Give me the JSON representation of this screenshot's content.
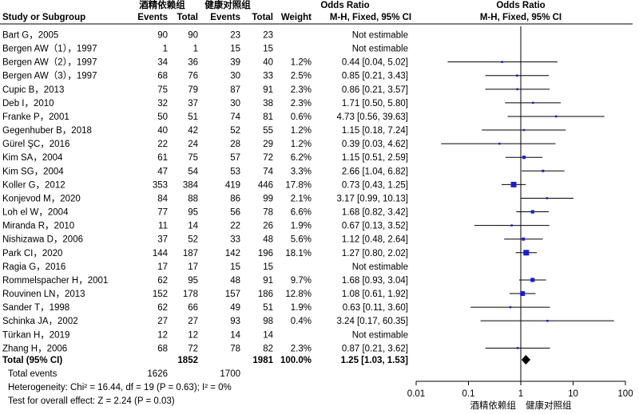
{
  "header": {
    "exp_group": "酒精依赖组",
    "ctl_group": "健康对照组",
    "or_title": "Odds Ratio",
    "plot_title": "Odds Ratio",
    "study_label": "Study or Subgroup",
    "events": "Events",
    "total": "Total",
    "weight": "Weight",
    "method": "M-H, Fixed, 95% CI",
    "plot_method": "M-H, Fixed, 95% CI"
  },
  "studies": [
    {
      "name": "Bart G，2005",
      "e1": "90",
      "t1": "90",
      "e2": "23",
      "t2": "23",
      "weight": "",
      "or_text": "Not estimable"
    },
    {
      "name": "Bergen AW（1），1997",
      "e1": "1",
      "t1": "1",
      "e2": "15",
      "t2": "15",
      "weight": "",
      "or_text": "Not estimable"
    },
    {
      "name": "Bergen AW（2），1997",
      "e1": "34",
      "t1": "36",
      "e2": "39",
      "t2": "40",
      "weight": "1.2%",
      "or_text": "0.44 [0.04, 5.02]"
    },
    {
      "name": "Bergen AW（3），1997",
      "e1": "68",
      "t1": "76",
      "e2": "30",
      "t2": "33",
      "weight": "2.5%",
      "or_text": "0.85 [0.21, 3.43]"
    },
    {
      "name": "Cupic B，2013",
      "e1": "75",
      "t1": "79",
      "e2": "87",
      "t2": "91",
      "weight": "2.3%",
      "or_text": "0.86 [0.21, 3.57]"
    },
    {
      "name": "Deb I，2010",
      "e1": "32",
      "t1": "37",
      "e2": "30",
      "t2": "38",
      "weight": "2.3%",
      "or_text": "1.71 [0.50, 5.80]"
    },
    {
      "name": "Franke P，2001",
      "e1": "50",
      "t1": "51",
      "e2": "74",
      "t2": "81",
      "weight": "0.6%",
      "or_text": "4.73 [0.56, 39.63]"
    },
    {
      "name": "Gegenhuber B，2018",
      "e1": "40",
      "t1": "42",
      "e2": "52",
      "t2": "55",
      "weight": "1.2%",
      "or_text": "1.15 [0.18, 7.24]"
    },
    {
      "name": "Gürel ŞC，2016",
      "e1": "22",
      "t1": "24",
      "e2": "28",
      "t2": "29",
      "weight": "1.2%",
      "or_text": "0.39 [0.03, 4.62]"
    },
    {
      "name": "Kim SA，2004",
      "e1": "61",
      "t1": "75",
      "e2": "57",
      "t2": "72",
      "weight": "6.2%",
      "or_text": "1.15 [0.51, 2.59]"
    },
    {
      "name": "Kim SG，2004",
      "e1": "47",
      "t1": "54",
      "e2": "53",
      "t2": "74",
      "weight": "3.3%",
      "or_text": "2.66 [1.04, 6.82]"
    },
    {
      "name": "Koller G，2012",
      "e1": "353",
      "t1": "384",
      "e2": "419",
      "t2": "446",
      "weight": "17.8%",
      "or_text": "0.73 [0.43, 1.25]"
    },
    {
      "name": "Konjevod M，2020",
      "e1": "84",
      "t1": "88",
      "e2": "86",
      "t2": "99",
      "weight": "2.1%",
      "or_text": "3.17 [0.99, 10.13]"
    },
    {
      "name": "Loh el W，2004",
      "e1": "77",
      "t1": "95",
      "e2": "56",
      "t2": "78",
      "weight": "6.6%",
      "or_text": "1.68 [0.82, 3.42]"
    },
    {
      "name": "Miranda R，2010",
      "e1": "11",
      "t1": "14",
      "e2": "22",
      "t2": "26",
      "weight": "1.9%",
      "or_text": "0.67 [0.13, 3.52]"
    },
    {
      "name": "Nishizawa D，2006",
      "e1": "37",
      "t1": "52",
      "e2": "33",
      "t2": "48",
      "weight": "5.6%",
      "or_text": "1.12 [0.48, 2.64]"
    },
    {
      "name": "Park CI，2020",
      "e1": "144",
      "t1": "187",
      "e2": "142",
      "t2": "196",
      "weight": "18.1%",
      "or_text": "1.27 [0.80, 2.02]"
    },
    {
      "name": "Ragia G，2016",
      "e1": "17",
      "t1": "17",
      "e2": "15",
      "t2": "15",
      "weight": "",
      "or_text": "Not estimable"
    },
    {
      "name": "Rommelspacher H，2001",
      "e1": "62",
      "t1": "95",
      "e2": "48",
      "t2": "91",
      "weight": "9.7%",
      "or_text": "1.68 [0.93, 3.04]"
    },
    {
      "name": "Rouvinen LN，2013",
      "e1": "152",
      "t1": "178",
      "e2": "157",
      "t2": "186",
      "weight": "12.8%",
      "or_text": "1.08 [0.61, 1.92]"
    },
    {
      "name": "Sander T，1998",
      "e1": "62",
      "t1": "66",
      "e2": "49",
      "t2": "51",
      "weight": "1.9%",
      "or_text": "0.63 [0.11, 3.60]"
    },
    {
      "name": "Schinka JA，2002",
      "e1": "27",
      "t1": "27",
      "e2": "93",
      "t2": "98",
      "weight": "0.4%",
      "or_text": "3.24 [0.17, 60.35]"
    },
    {
      "name": "Türkan H，2019",
      "e1": "12",
      "t1": "12",
      "e2": "14",
      "t2": "14",
      "weight": "",
      "or_text": "Not estimable"
    },
    {
      "name": "Zhang H，2006",
      "e1": "68",
      "t1": "72",
      "e2": "78",
      "t2": "82",
      "weight": "2.3%",
      "or_text": "0.87 [0.21, 3.62]"
    }
  ],
  "total": {
    "name": "Total (95% CI)",
    "t1": "1852",
    "t2": "1981",
    "weight": "100.0%",
    "or_text": "1.25 [1.03, 1.53]"
  },
  "total_events": {
    "label": "Total events",
    "e1": "1626",
    "e2": "1700"
  },
  "heterogeneity": "Heterogeneity: Chi² = 16.44, df = 19 (P = 0.63); I² = 0%",
  "overall_effect": "Test for overall effect: Z = 2.24 (P = 0.03)",
  "axis": {
    "ticks": [
      "0.01",
      "0.1",
      "1",
      "10",
      "100"
    ],
    "favours_left": "酒精依赖组",
    "favours_right": "健康对照组"
  },
  "colors": {
    "square": "#1a1adc",
    "line": "#000000",
    "diamond": "#000000"
  },
  "chart_data": {
    "type": "forest",
    "xscale": "log",
    "xlim": [
      0.01,
      100
    ],
    "null_line": 1,
    "studies": [
      {
        "name": "Bart G，2005",
        "or": null,
        "lo": null,
        "hi": null,
        "weight": 0
      },
      {
        "name": "Bergen AW（1），1997",
        "or": null,
        "lo": null,
        "hi": null,
        "weight": 0
      },
      {
        "name": "Bergen AW（2），1997",
        "or": 0.44,
        "lo": 0.04,
        "hi": 5.02,
        "weight": 1.2
      },
      {
        "name": "Bergen AW（3），1997",
        "or": 0.85,
        "lo": 0.21,
        "hi": 3.43,
        "weight": 2.5
      },
      {
        "name": "Cupic B，2013",
        "or": 0.86,
        "lo": 0.21,
        "hi": 3.57,
        "weight": 2.3
      },
      {
        "name": "Deb I，2010",
        "or": 1.71,
        "lo": 0.5,
        "hi": 5.8,
        "weight": 2.3
      },
      {
        "name": "Franke P，2001",
        "or": 4.73,
        "lo": 0.56,
        "hi": 39.63,
        "weight": 0.6
      },
      {
        "name": "Gegenhuber B，2018",
        "or": 1.15,
        "lo": 0.18,
        "hi": 7.24,
        "weight": 1.2
      },
      {
        "name": "Gürel ŞC，2016",
        "or": 0.39,
        "lo": 0.03,
        "hi": 4.62,
        "weight": 1.2
      },
      {
        "name": "Kim SA，2004",
        "or": 1.15,
        "lo": 0.51,
        "hi": 2.59,
        "weight": 6.2
      },
      {
        "name": "Kim SG，2004",
        "or": 2.66,
        "lo": 1.04,
        "hi": 6.82,
        "weight": 3.3
      },
      {
        "name": "Koller G，2012",
        "or": 0.73,
        "lo": 0.43,
        "hi": 1.25,
        "weight": 17.8
      },
      {
        "name": "Konjevod M，2020",
        "or": 3.17,
        "lo": 0.99,
        "hi": 10.13,
        "weight": 2.1
      },
      {
        "name": "Loh el W，2004",
        "or": 1.68,
        "lo": 0.82,
        "hi": 3.42,
        "weight": 6.6
      },
      {
        "name": "Miranda R，2010",
        "or": 0.67,
        "lo": 0.13,
        "hi": 3.52,
        "weight": 1.9
      },
      {
        "name": "Nishizawa D，2006",
        "or": 1.12,
        "lo": 0.48,
        "hi": 2.64,
        "weight": 5.6
      },
      {
        "name": "Park CI，2020",
        "or": 1.27,
        "lo": 0.8,
        "hi": 2.02,
        "weight": 18.1
      },
      {
        "name": "Ragia G，2016",
        "or": null,
        "lo": null,
        "hi": null,
        "weight": 0
      },
      {
        "name": "Rommelspacher H，2001",
        "or": 1.68,
        "lo": 0.93,
        "hi": 3.04,
        "weight": 9.7
      },
      {
        "name": "Rouvinen LN，2013",
        "or": 1.08,
        "lo": 0.61,
        "hi": 1.92,
        "weight": 12.8
      },
      {
        "name": "Sander T，1998",
        "or": 0.63,
        "lo": 0.11,
        "hi": 3.6,
        "weight": 1.9
      },
      {
        "name": "Schinka JA，2002",
        "or": 3.24,
        "lo": 0.17,
        "hi": 60.35,
        "weight": 0.4
      },
      {
        "name": "Türkan H，2019",
        "or": null,
        "lo": null,
        "hi": null,
        "weight": 0
      },
      {
        "name": "Zhang H，2006",
        "or": 0.87,
        "lo": 0.21,
        "hi": 3.62,
        "weight": 2.3
      }
    ],
    "pooled": {
      "or": 1.25,
      "lo": 1.03,
      "hi": 1.53
    }
  }
}
